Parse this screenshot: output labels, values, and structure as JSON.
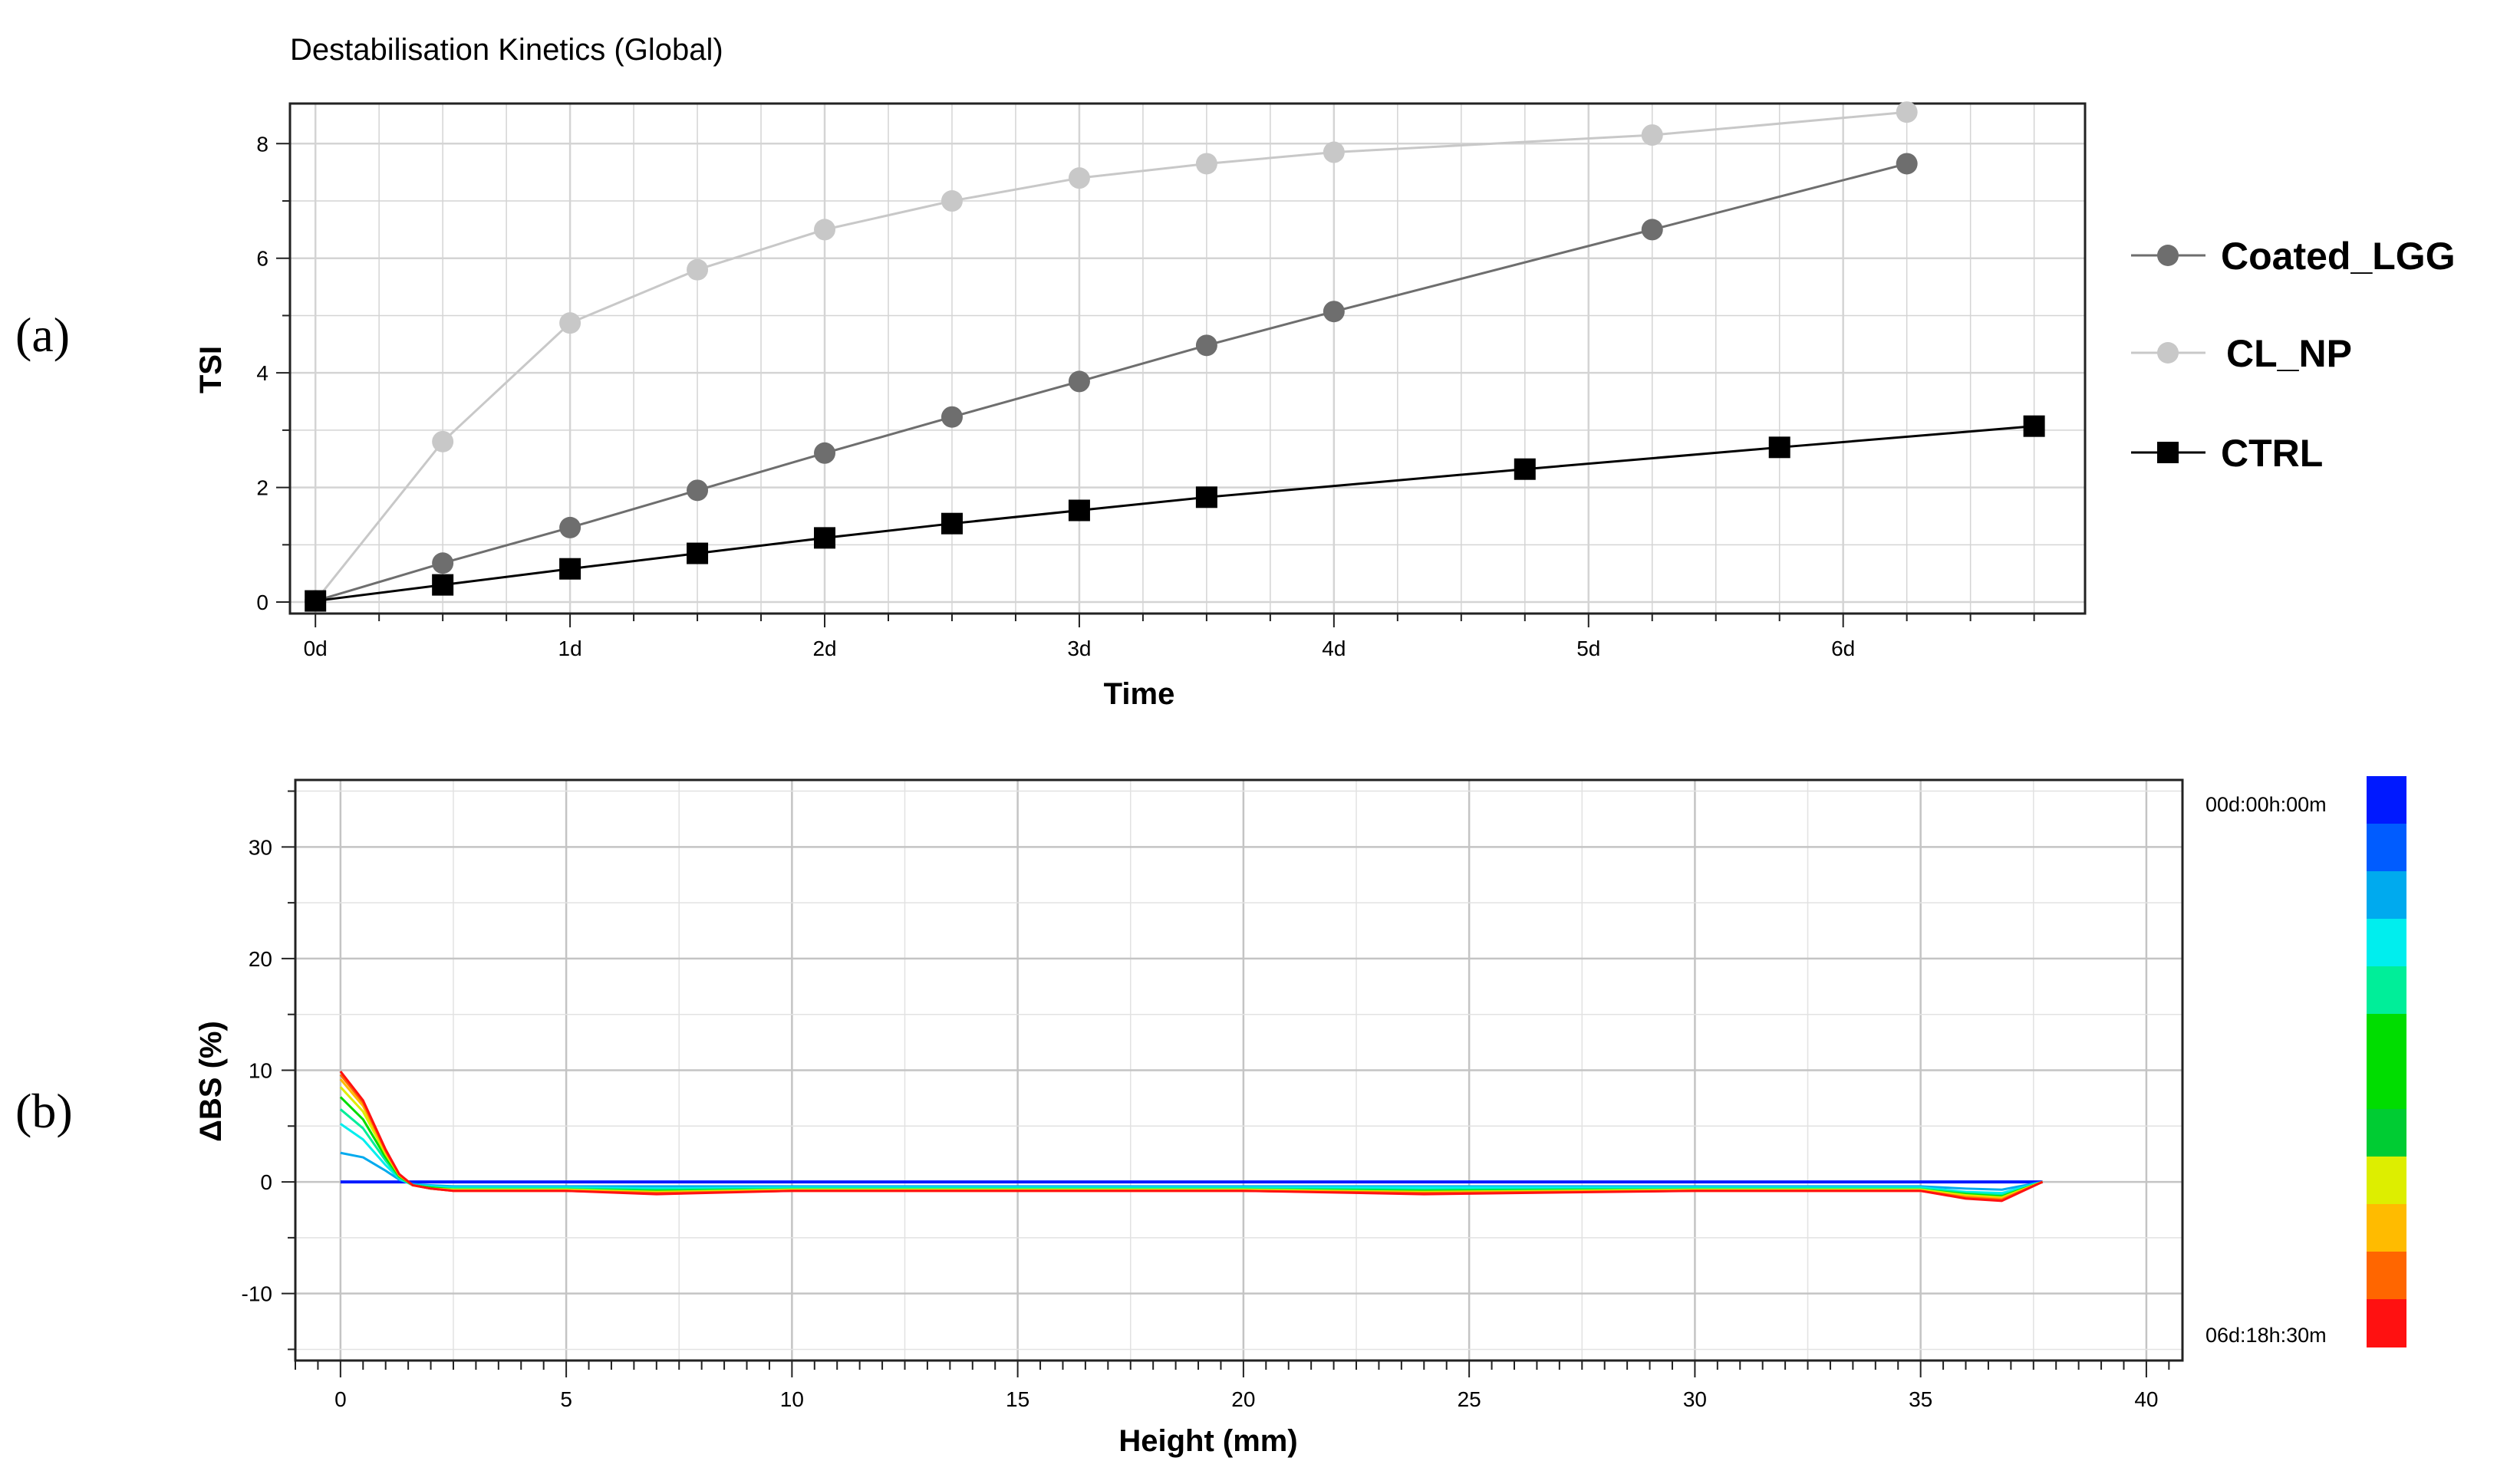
{
  "panels": {
    "a": "(a)",
    "b": "(b)"
  },
  "chart_data": [
    {
      "type": "line",
      "title": "Destabilisation Kinetics (Global)",
      "xlabel": "Time",
      "ylabel": "TSI",
      "xlim": [
        -0.1,
        6.95
      ],
      "ylim": [
        -0.2,
        8.7
      ],
      "xticks": [
        0,
        1,
        2,
        3,
        4,
        5,
        6
      ],
      "xtick_labels": [
        "0d",
        "1d",
        "2d",
        "3d",
        "4d",
        "5d",
        "6d"
      ],
      "yticks": [
        0,
        2,
        4,
        6,
        8
      ],
      "ytick_labels": [
        "0",
        "2",
        "4",
        "6",
        "8"
      ],
      "grid": true,
      "legend_position": "right",
      "series": [
        {
          "name": "Coated_LGG",
          "color": "#6e6e6e",
          "marker": "circle",
          "x": [
            0,
            0.5,
            1,
            1.5,
            2,
            2.5,
            3,
            3.5,
            4,
            5.25,
            6.25
          ],
          "y": [
            0.02,
            0.68,
            1.3,
            1.95,
            2.6,
            3.23,
            3.85,
            4.48,
            5.07,
            6.5,
            7.65
          ]
        },
        {
          "name": "CL_NP",
          "color": "#c8c8c8",
          "marker": "circle",
          "x": [
            0,
            0.5,
            1,
            1.5,
            2,
            2.5,
            3,
            3.5,
            4,
            5.25,
            6.25
          ],
          "y": [
            0.02,
            2.8,
            4.87,
            5.8,
            6.5,
            7.0,
            7.4,
            7.65,
            7.85,
            8.15,
            8.55
          ]
        },
        {
          "name": "CTRL",
          "color": "#000000",
          "marker": "square",
          "x": [
            0,
            0.5,
            1,
            1.5,
            2,
            2.5,
            3,
            3.5,
            4.75,
            5.75,
            6.75
          ],
          "y": [
            0.02,
            0.3,
            0.58,
            0.85,
            1.12,
            1.37,
            1.6,
            1.83,
            2.32,
            2.7,
            3.07
          ]
        }
      ]
    },
    {
      "type": "line",
      "title": "",
      "xlabel": "Height (mm)",
      "ylabel": "ΔBS (%)",
      "xlim": [
        -1,
        40.8
      ],
      "ylim": [
        -16,
        36
      ],
      "xticks": [
        0,
        5,
        10,
        15,
        20,
        25,
        30,
        35,
        40
      ],
      "xtick_labels": [
        "0",
        "5",
        "10",
        "15",
        "20",
        "25",
        "30",
        "35",
        "40"
      ],
      "yticks": [
        -10,
        0,
        10,
        20,
        30
      ],
      "ytick_labels": [
        "-10",
        "0",
        "10",
        "20",
        "30"
      ],
      "grid": true,
      "colorbar": {
        "top_label": "00d:00h:00m",
        "bottom_label": "06d:18h:30m",
        "colors": [
          "#0019ff",
          "#005cff",
          "#00aaee",
          "#00eeee",
          "#00ee99",
          "#00dd00",
          "#00dd00",
          "#00cc33",
          "#ddee00",
          "#ffbb00",
          "#ff6600",
          "#ff1111"
        ]
      },
      "series": [
        {
          "name": "",
          "color": "#0019ff",
          "x": [
            0,
            1.5,
            3,
            6,
            7,
            7.5,
            10,
            15,
            20,
            25,
            30,
            35,
            36.5,
            37.7
          ],
          "y": [
            0,
            0,
            0,
            0,
            0,
            0,
            0,
            0,
            0,
            0,
            0,
            0,
            0,
            0
          ]
        },
        {
          "name": "",
          "color": "#00aaee",
          "x": [
            0,
            0.5,
            1,
            1.3,
            1.6,
            2,
            2.5,
            5,
            7,
            10,
            15,
            20,
            24,
            30,
            35,
            36,
            36.8,
            37.7
          ],
          "y": [
            2.6,
            2.2,
            1.0,
            0.2,
            -0.2,
            -0.3,
            -0.4,
            -0.4,
            -0.4,
            -0.4,
            -0.4,
            -0.4,
            -0.4,
            -0.4,
            -0.4,
            -0.6,
            -0.7,
            0
          ]
        },
        {
          "name": "",
          "color": "#00eeee",
          "x": [
            0,
            0.5,
            1,
            1.3,
            1.6,
            2,
            2.5,
            5,
            7,
            10,
            15,
            20,
            24,
            30,
            35,
            36,
            36.8,
            37.7
          ],
          "y": [
            5.2,
            3.8,
            1.5,
            0.3,
            -0.3,
            -0.4,
            -0.5,
            -0.5,
            -0.6,
            -0.5,
            -0.5,
            -0.5,
            -0.5,
            -0.5,
            -0.5,
            -0.9,
            -1.0,
            0
          ]
        },
        {
          "name": "",
          "color": "#00ee99",
          "x": [
            0,
            0.5,
            1,
            1.3,
            1.6,
            2,
            2.5,
            5,
            7,
            10,
            15,
            20,
            24,
            30,
            35,
            36,
            36.8,
            37.7
          ],
          "y": [
            6.5,
            4.8,
            1.9,
            0.4,
            -0.3,
            -0.5,
            -0.6,
            -0.6,
            -0.7,
            -0.6,
            -0.6,
            -0.6,
            -0.7,
            -0.6,
            -0.6,
            -1.0,
            -1.2,
            0
          ]
        },
        {
          "name": "",
          "color": "#00dd00",
          "x": [
            0,
            0.5,
            1,
            1.3,
            1.6,
            2,
            2.5,
            5,
            7,
            10,
            15,
            20,
            24,
            30,
            35,
            36,
            36.8,
            37.7
          ],
          "y": [
            7.6,
            5.6,
            2.2,
            0.5,
            -0.3,
            -0.5,
            -0.7,
            -0.7,
            -0.8,
            -0.7,
            -0.7,
            -0.7,
            -0.8,
            -0.7,
            -0.7,
            -1.1,
            -1.3,
            0
          ]
        },
        {
          "name": "",
          "color": "#ddee00",
          "x": [
            0,
            0.5,
            1,
            1.3,
            1.6,
            2,
            2.5,
            5,
            7,
            10,
            15,
            20,
            24,
            30,
            35,
            36,
            36.8,
            37.7
          ],
          "y": [
            8.5,
            6.3,
            2.5,
            0.6,
            -0.3,
            -0.6,
            -0.7,
            -0.7,
            -0.9,
            -0.7,
            -0.7,
            -0.7,
            -0.9,
            -0.7,
            -0.7,
            -1.2,
            -1.4,
            0
          ]
        },
        {
          "name": "",
          "color": "#ffbb00",
          "x": [
            0,
            0.5,
            1,
            1.3,
            1.6,
            2,
            2.5,
            5,
            7,
            10,
            15,
            20,
            24,
            30,
            35,
            36,
            36.8,
            37.7
          ],
          "y": [
            9.2,
            6.8,
            2.7,
            0.6,
            -0.3,
            -0.6,
            -0.8,
            -0.8,
            -1.0,
            -0.8,
            -0.8,
            -0.8,
            -1.0,
            -0.8,
            -0.8,
            -1.3,
            -1.5,
            0
          ]
        },
        {
          "name": "",
          "color": "#ff6600",
          "x": [
            0,
            0.5,
            1,
            1.3,
            1.6,
            2,
            2.5,
            5,
            7,
            10,
            15,
            20,
            24,
            30,
            35,
            36,
            36.8,
            37.7
          ],
          "y": [
            9.6,
            7.1,
            2.8,
            0.7,
            -0.3,
            -0.6,
            -0.8,
            -0.8,
            -1.0,
            -0.8,
            -0.8,
            -0.8,
            -1.0,
            -0.8,
            -0.8,
            -1.4,
            -1.6,
            0
          ]
        },
        {
          "name": "",
          "color": "#ff1111",
          "x": [
            0,
            0.5,
            1,
            1.3,
            1.6,
            2,
            2.5,
            5,
            7,
            10,
            15,
            20,
            24,
            30,
            35,
            36,
            36.8,
            37.7
          ],
          "y": [
            9.9,
            7.3,
            2.9,
            0.7,
            -0.3,
            -0.6,
            -0.8,
            -0.8,
            -1.1,
            -0.8,
            -0.8,
            -0.8,
            -1.1,
            -0.8,
            -0.8,
            -1.5,
            -1.7,
            0
          ]
        }
      ]
    }
  ]
}
